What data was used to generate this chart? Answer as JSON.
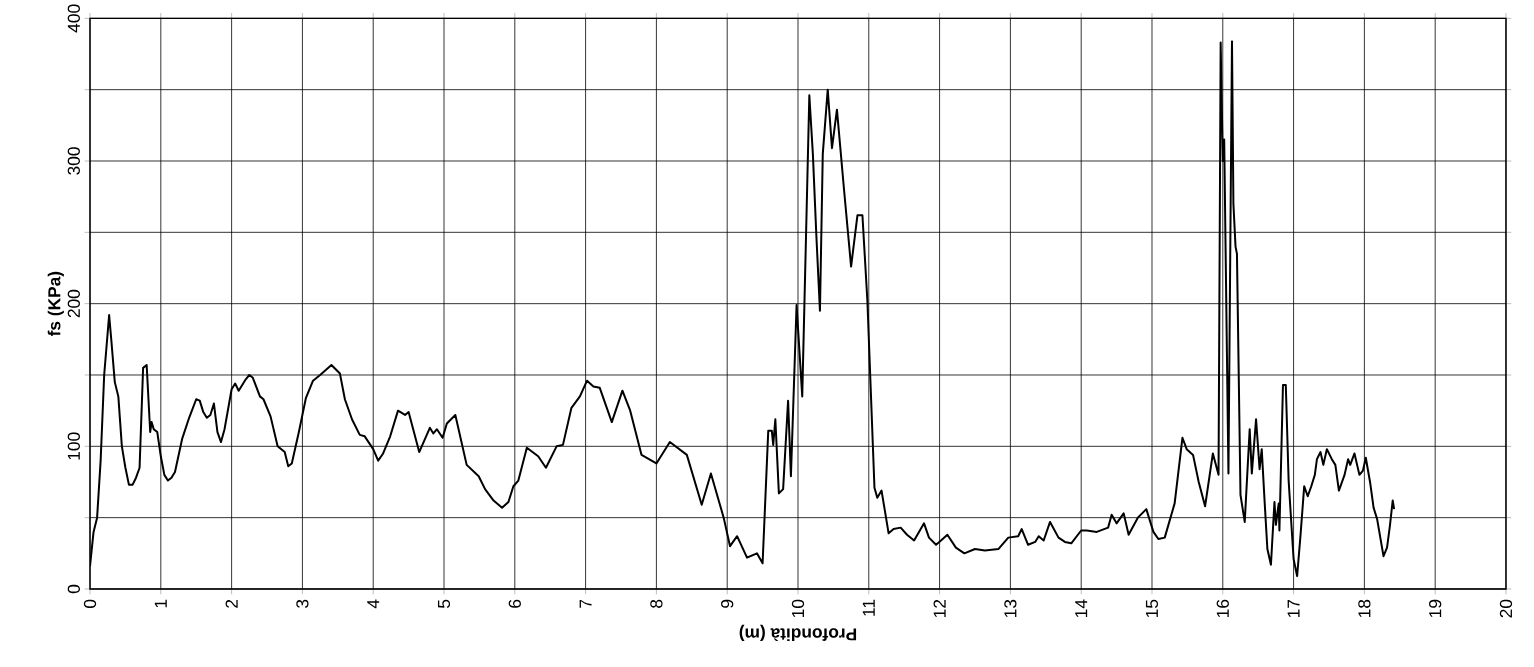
{
  "chart_data": {
    "type": "line",
    "xlabel": "Profondità (m)",
    "ylabel": "fs (KPa)",
    "xlim": [
      0,
      20
    ],
    "xticks": [
      0,
      1,
      2,
      3,
      4,
      5,
      6,
      7,
      8,
      9,
      10,
      11,
      12,
      13,
      14,
      15,
      16,
      17,
      18,
      19,
      20
    ],
    "ylim": [
      0,
      400
    ],
    "yticks": [
      0,
      {
        "value": 50,
        "label": null
      },
      100,
      {
        "value": 150,
        "label": null
      },
      200,
      {
        "value": 250,
        "label": null
      },
      300,
      {
        "value": 350,
        "label": null
      },
      400
    ],
    "grid": true,
    "marker": "none",
    "line_style": "solid",
    "series": [
      {
        "color": "#000000",
        "x": [
          0,
          0.05,
          0.1,
          0.15,
          0.2,
          0.27,
          0.3,
          0.35,
          0.4,
          0.45,
          0.5,
          0.55,
          0.6,
          0.65,
          0.7,
          0.75,
          0.8,
          0.85,
          0.87,
          0.9,
          0.95,
          1.0,
          1.05,
          1.1,
          1.15,
          1.2,
          1.3,
          1.4,
          1.5,
          1.55,
          1.6,
          1.65,
          1.7,
          1.75,
          1.8,
          1.85,
          1.9,
          2.0,
          2.05,
          2.1,
          2.2,
          2.25,
          2.3,
          2.4,
          2.45,
          2.55,
          2.65,
          2.75,
          2.8,
          2.85,
          2.95,
          3.05,
          3.15,
          3.25,
          3.41,
          3.53,
          3.6,
          3.7,
          3.81,
          3.88,
          4.0,
          4.07,
          4.14,
          4.24,
          4.35,
          4.45,
          4.5,
          4.65,
          4.8,
          4.85,
          4.9,
          4.98,
          5.04,
          5.16,
          5.32,
          5.49,
          5.58,
          5.7,
          5.82,
          5.91,
          5.98,
          6.05,
          6.17,
          6.33,
          6.44,
          6.59,
          6.68,
          6.8,
          6.92,
          7.02,
          7.11,
          7.2,
          7.37,
          7.52,
          7.63,
          7.79,
          8.0,
          8.19,
          8.43,
          8.64,
          8.77,
          8.95,
          9.04,
          9.14,
          9.28,
          9.42,
          9.5,
          9.58,
          9.63,
          9.65,
          9.68,
          9.73,
          9.79,
          9.86,
          9.9,
          9.98,
          10.06,
          10.16,
          10.21,
          10.26,
          10.31,
          10.35,
          10.42,
          10.48,
          10.55,
          10.65,
          10.75,
          10.84,
          10.91,
          10.98,
          11.08,
          11.12,
          11.18,
          11.28,
          11.35,
          11.45,
          11.54,
          11.64,
          11.78,
          11.85,
          11.95,
          12.02,
          12.11,
          12.23,
          12.35,
          12.5,
          12.64,
          12.83,
          12.97,
          13.11,
          13.16,
          13.25,
          13.35,
          13.4,
          13.47,
          13.56,
          13.68,
          13.77,
          13.86,
          14.0,
          14.08,
          14.22,
          14.38,
          14.43,
          14.5,
          14.6,
          14.67,
          14.8,
          14.92,
          15.02,
          15.09,
          15.18,
          15.32,
          15.43,
          15.49,
          15.58,
          15.66,
          15.75,
          15.86,
          15.94,
          15.97,
          16.0,
          16.02,
          16.08,
          16.13,
          16.15,
          16.18,
          16.2,
          16.25,
          16.31,
          16.38,
          16.41,
          16.47,
          16.52,
          16.55,
          16.59,
          16.63,
          16.68,
          16.73,
          16.75,
          16.79,
          16.8,
          16.85,
          16.89,
          16.93,
          17.0,
          17.05,
          17.1,
          17.15,
          17.2,
          17.25,
          17.3,
          17.33,
          17.38,
          17.42,
          17.47,
          17.54,
          17.59,
          17.64,
          17.72,
          17.77,
          17.8,
          17.86,
          17.93,
          17.98,
          18.02,
          18.08,
          18.13,
          18.18,
          18.27,
          18.32,
          18.36,
          18.4,
          18.42
        ],
        "values": [
          16,
          40,
          50,
          90,
          150,
          192,
          175,
          145,
          135,
          100,
          85,
          73,
          73,
          78,
          85,
          155,
          157,
          110,
          117,
          112,
          110,
          93,
          80,
          76,
          78,
          82,
          105,
          120,
          133,
          132,
          124,
          120,
          122,
          130,
          110,
          103,
          112,
          140,
          144,
          139,
          147,
          150,
          148,
          135,
          133,
          121,
          100,
          96,
          86,
          88,
          110,
          134,
          146,
          150,
          157,
          151,
          133,
          119,
          108,
          107,
          98,
          90,
          95,
          107,
          125,
          122,
          124,
          96,
          113,
          109,
          112,
          106,
          116,
          122,
          87,
          79,
          70,
          62,
          57,
          61,
          72,
          76,
          99,
          93,
          85,
          100,
          101,
          127,
          135,
          146,
          142,
          141,
          117,
          139,
          125,
          94,
          88,
          103,
          94,
          59,
          81,
          50,
          30,
          37,
          22,
          25,
          18,
          111,
          111,
          101,
          119,
          67,
          70,
          132,
          79,
          199,
          135,
          346,
          305,
          247,
          195,
          305,
          350,
          309,
          336,
          280,
          226,
          262,
          262,
          202,
          71,
          64,
          69,
          39,
          42,
          43,
          38,
          34,
          46,
          36,
          31,
          34,
          38,
          29,
          25,
          28,
          27,
          28,
          36,
          37,
          42,
          31,
          33,
          37,
          34,
          47,
          36,
          33,
          32,
          41,
          41,
          40,
          43,
          52,
          46,
          53,
          38,
          50,
          56,
          40,
          35,
          36,
          60,
          106,
          98,
          94,
          75,
          58,
          95,
          80,
          383,
          300,
          315,
          81,
          384,
          270,
          240,
          235,
          66,
          47,
          112,
          81,
          119,
          84,
          98,
          62,
          28,
          17,
          61,
          45,
          60,
          41,
          143,
          143,
          76,
          21,
          9,
          39,
          72,
          65,
          72,
          80,
          91,
          96,
          87,
          98,
          91,
          87,
          69,
          80,
          91,
          87,
          95,
          80,
          83,
          92,
          75,
          57,
          49,
          23,
          29,
          44,
          62,
          56
        ]
      }
    ]
  }
}
